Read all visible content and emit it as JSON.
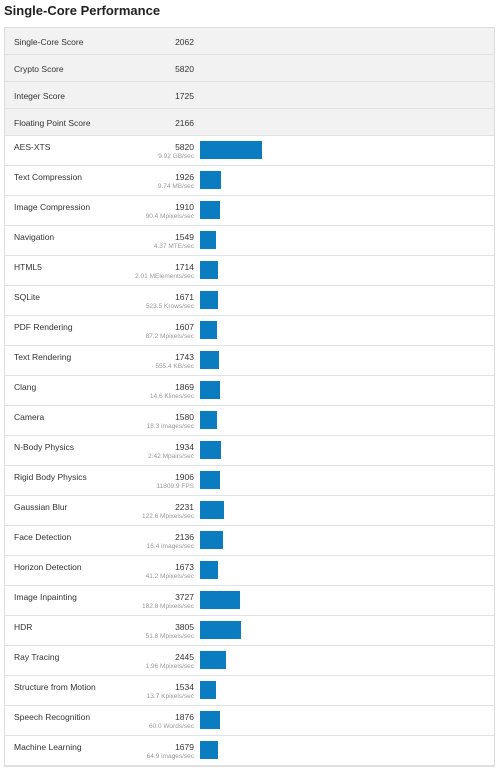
{
  "title": "Single-Core Performance",
  "summary": [
    {
      "label": "Single-Core Score",
      "score": 2062
    },
    {
      "label": "Crypto Score",
      "score": 5820
    },
    {
      "label": "Integer Score",
      "score": 1725
    },
    {
      "label": "Floating Point Score",
      "score": 2166
    }
  ],
  "benchmarks": [
    {
      "name": "AES-XTS",
      "score": 5820,
      "detail": "9.92 GB/sec"
    },
    {
      "name": "Text Compression",
      "score": 1926,
      "detail": "9.74 MB/sec"
    },
    {
      "name": "Image Compression",
      "score": 1910,
      "detail": "90.4 Mpixels/sec"
    },
    {
      "name": "Navigation",
      "score": 1549,
      "detail": "4.37 MTE/sec"
    },
    {
      "name": "HTML5",
      "score": 1714,
      "detail": "2.01 MElements/sec"
    },
    {
      "name": "SQLite",
      "score": 1671,
      "detail": "523.5 Krows/sec"
    },
    {
      "name": "PDF Rendering",
      "score": 1607,
      "detail": "87.2 Mpixels/sec"
    },
    {
      "name": "Text Rendering",
      "score": 1743,
      "detail": "555.4 KB/sec"
    },
    {
      "name": "Clang",
      "score": 1869,
      "detail": "14.6 Klines/sec"
    },
    {
      "name": "Camera",
      "score": 1580,
      "detail": "18.3 images/sec"
    },
    {
      "name": "N-Body Physics",
      "score": 1934,
      "detail": "2.42 Mpairs/sec"
    },
    {
      "name": "Rigid Body Physics",
      "score": 1906,
      "detail": "11809.9 FPS"
    },
    {
      "name": "Gaussian Blur",
      "score": 2231,
      "detail": "122.6 Mpixels/sec"
    },
    {
      "name": "Face Detection",
      "score": 2136,
      "detail": "16.4 images/sec"
    },
    {
      "name": "Horizon Detection",
      "score": 1673,
      "detail": "41.2 Mpixels/sec"
    },
    {
      "name": "Image Inpainting",
      "score": 3727,
      "detail": "182.8 Mpixels/sec"
    },
    {
      "name": "HDR",
      "score": 3805,
      "detail": "51.8 Mpixels/sec"
    },
    {
      "name": "Ray Tracing",
      "score": 2445,
      "detail": "1.96 Mpixels/sec"
    },
    {
      "name": "Structure from Motion",
      "score": 1534,
      "detail": "13.7 Kpixels/sec"
    },
    {
      "name": "Speech Recognition",
      "score": 1876,
      "detail": "60.0 Words/sec"
    },
    {
      "name": "Machine Learning",
      "score": 1679,
      "detail": "64.9 images/sec"
    }
  ]
}
